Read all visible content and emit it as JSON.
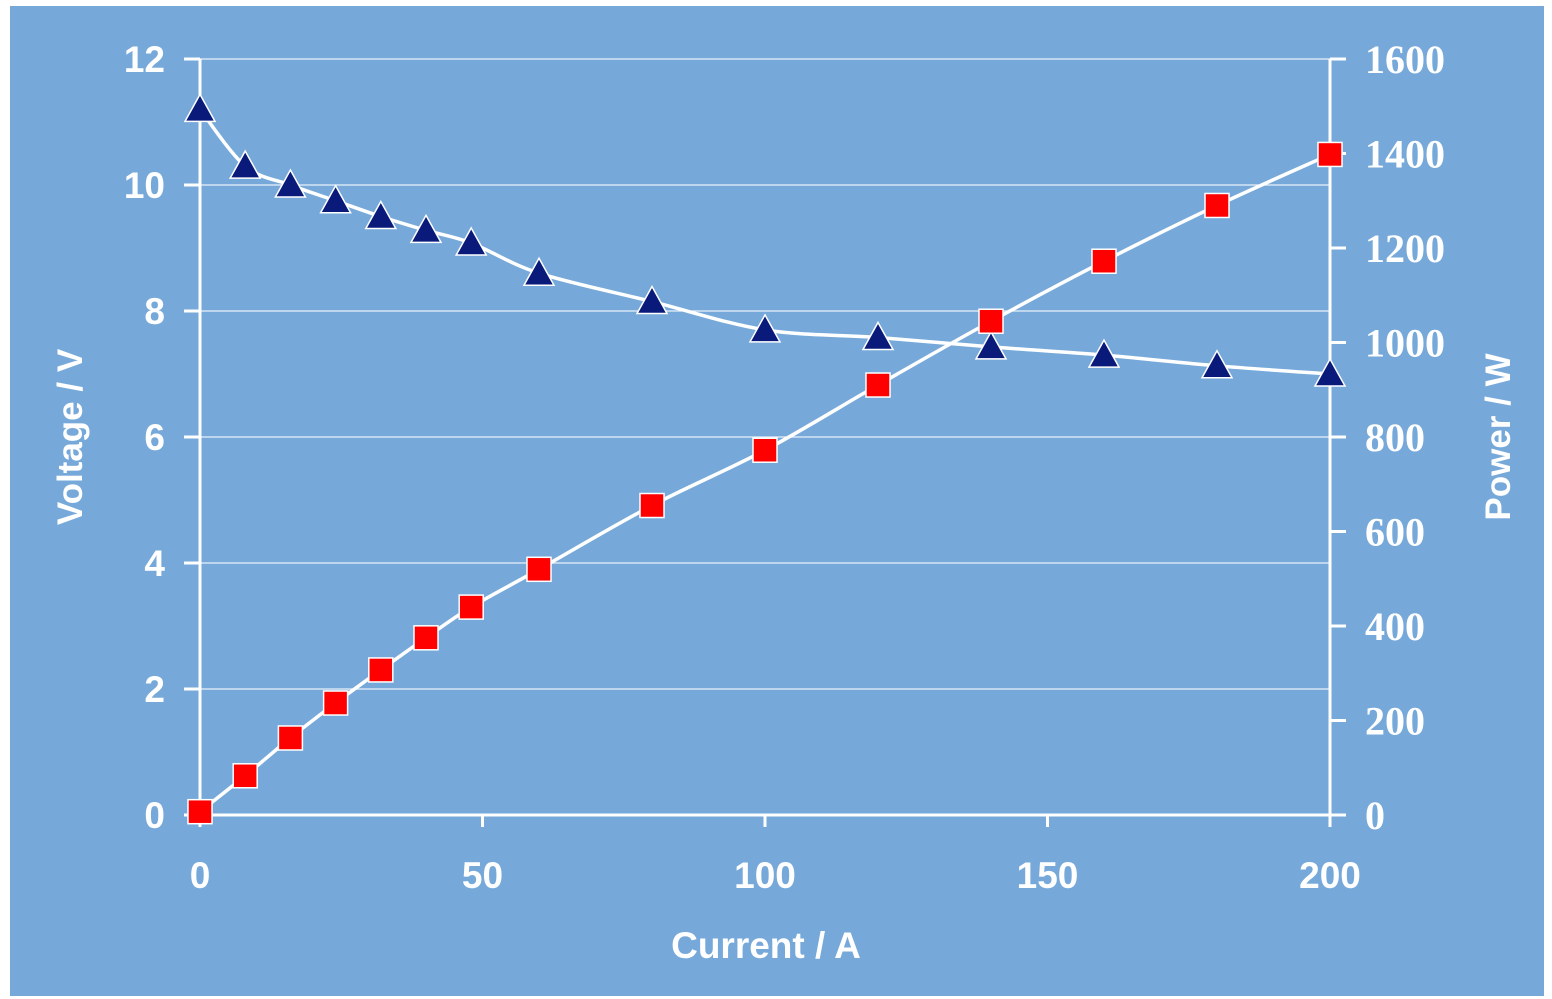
{
  "chart_data": {
    "type": "line",
    "title": "",
    "xlabel": "Current / A",
    "ylabel": "Voltage / V",
    "y2label": "Power / W",
    "xlim": [
      0,
      200
    ],
    "ylim": [
      0,
      12
    ],
    "y2lim": [
      0,
      1600
    ],
    "x_ticks": [
      "0",
      "50",
      "100",
      "150",
      "200"
    ],
    "y_ticks": [
      "0",
      "2",
      "4",
      "6",
      "8",
      "10",
      "12"
    ],
    "y2_ticks": [
      "0",
      "200",
      "400",
      "600",
      "800",
      "1000",
      "1200",
      "1400",
      "1600"
    ],
    "grid": true,
    "legend": "none",
    "colors": {
      "background": "#76a9d9",
      "axis": "#ffffff",
      "grid": "#ffffff",
      "voltage_marker": "#0a1a7a",
      "power_marker": "#ff0000",
      "line": "#ffffff"
    },
    "series": [
      {
        "axis": "left",
        "marker": "triangle",
        "x": [
          0,
          8,
          16,
          24,
          32,
          40,
          48,
          60,
          80,
          100,
          120,
          140,
          160,
          180,
          200
        ],
        "values": [
          11.2,
          10.3,
          10.0,
          9.75,
          9.5,
          9.28,
          9.08,
          8.6,
          8.15,
          7.7,
          7.58,
          7.43,
          7.3,
          7.13,
          7.0
        ]
      },
      {
        "axis": "right",
        "marker": "square",
        "x": [
          0,
          8,
          16,
          24,
          32,
          40,
          48,
          60,
          80,
          100,
          120,
          140,
          160,
          180,
          200
        ],
        "values": [
          7,
          83,
          163,
          237,
          307,
          375,
          440,
          520,
          655,
          772,
          910,
          1045,
          1172,
          1290,
          1398
        ]
      }
    ]
  }
}
